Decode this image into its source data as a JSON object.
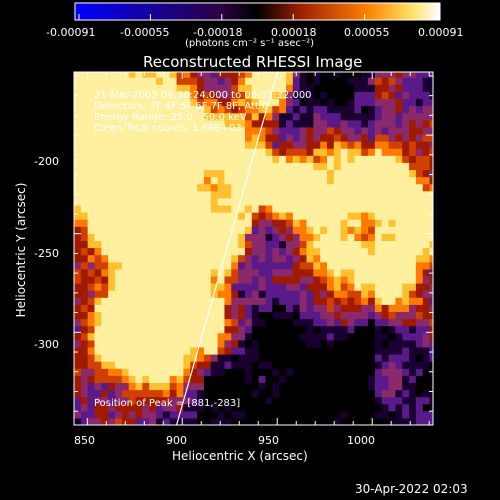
{
  "colorbar": {
    "tick_labels": [
      "-0.00091",
      "-0.00055",
      "-0.00018",
      "0.00018",
      "0.00055",
      "0.00091"
    ],
    "unit_label": "(photons cm⁻² s⁻¹ asec⁻²)",
    "range": [
      -0.00091,
      0.00091
    ]
  },
  "chart_data": {
    "type": "heatmap",
    "title": "Reconstructed RHESSI Image",
    "xlabel": "Heliocentric X (arcsec)",
    "ylabel": "Heliocentric Y (arcsec)",
    "xlim": [
      843,
      1032
    ],
    "ylim": [
      -347,
      -168
    ],
    "x_ticks": [
      850,
      900,
      950,
      1000
    ],
    "y_ticks": [
      -200,
      -250,
      -300
    ],
    "limb_line": [
      [
        897,
        -347
      ],
      [
        950,
        -168
      ]
    ],
    "peak": [
      881,
      -283
    ],
    "info_lines": [
      "21-Mar-2003 09:30:24.000 to 09:31:32.000",
      "Detectors: 3F 4F 5F 6F 7F 8F, Att 0",
      "Energy Range: 25.0 - 50.0 keV",
      "Clean    Total counts: 1.66E+03"
    ],
    "peak_label": "Position of Peak = [881,-283]"
  },
  "footer": {
    "timestamp": "30-Apr-2022 02:03"
  }
}
